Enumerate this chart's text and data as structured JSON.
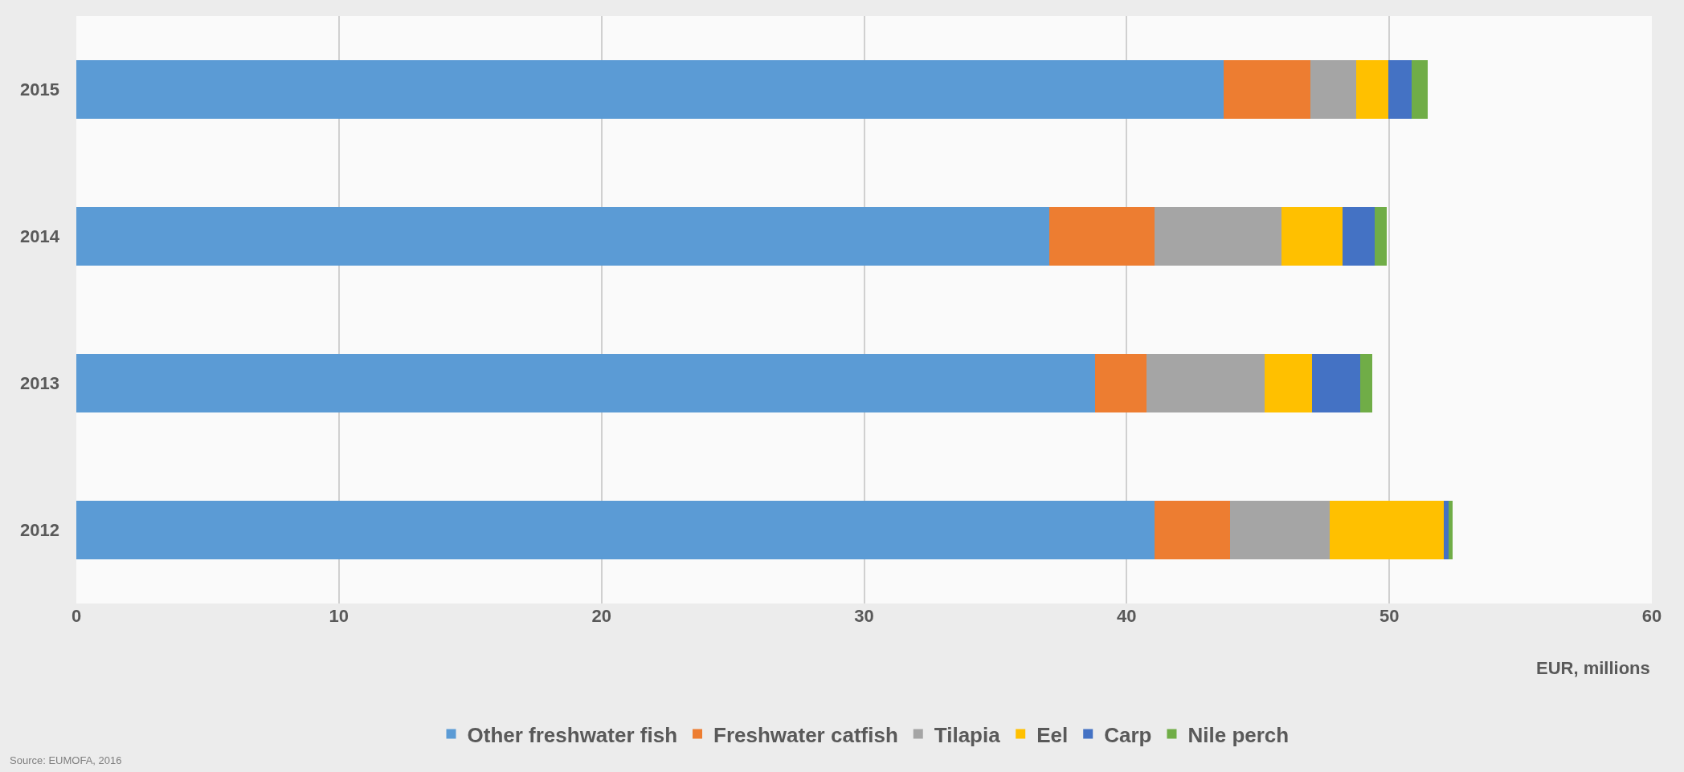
{
  "chart_data": {
    "type": "bar",
    "orientation": "horizontal",
    "stacked": true,
    "categories": [
      "2015",
      "2014",
      "2013",
      "2012"
    ],
    "series": [
      {
        "name": "Other freshwater fish",
        "color": "#5b9bd5",
        "values": [
          43.7,
          37.05,
          38.8,
          41.07
        ]
      },
      {
        "name": "Freshwater catfish",
        "color": "#ed7d31",
        "values": [
          3.3,
          4.0,
          1.94,
          2.87
        ]
      },
      {
        "name": "Tilapia",
        "color": "#a5a5a5",
        "values": [
          1.75,
          4.86,
          4.5,
          3.8
        ]
      },
      {
        "name": "Eel",
        "color": "#ffc000",
        "values": [
          1.2,
          2.32,
          1.83,
          4.34
        ]
      },
      {
        "name": "Carp",
        "color": "#4472c4",
        "values": [
          0.9,
          1.21,
          1.82,
          0.17
        ]
      },
      {
        "name": "Nile perch",
        "color": "#70ad47",
        "values": [
          0.6,
          0.47,
          0.46,
          0.16
        ]
      }
    ],
    "xlim": [
      0,
      60
    ],
    "xticks": [
      0,
      10,
      20,
      30,
      40,
      50,
      60
    ],
    "xlabel": "EUR, millions",
    "grid": "x",
    "legend": "bottom",
    "annotations": [
      "Source: EUMOFA, 2016"
    ]
  }
}
